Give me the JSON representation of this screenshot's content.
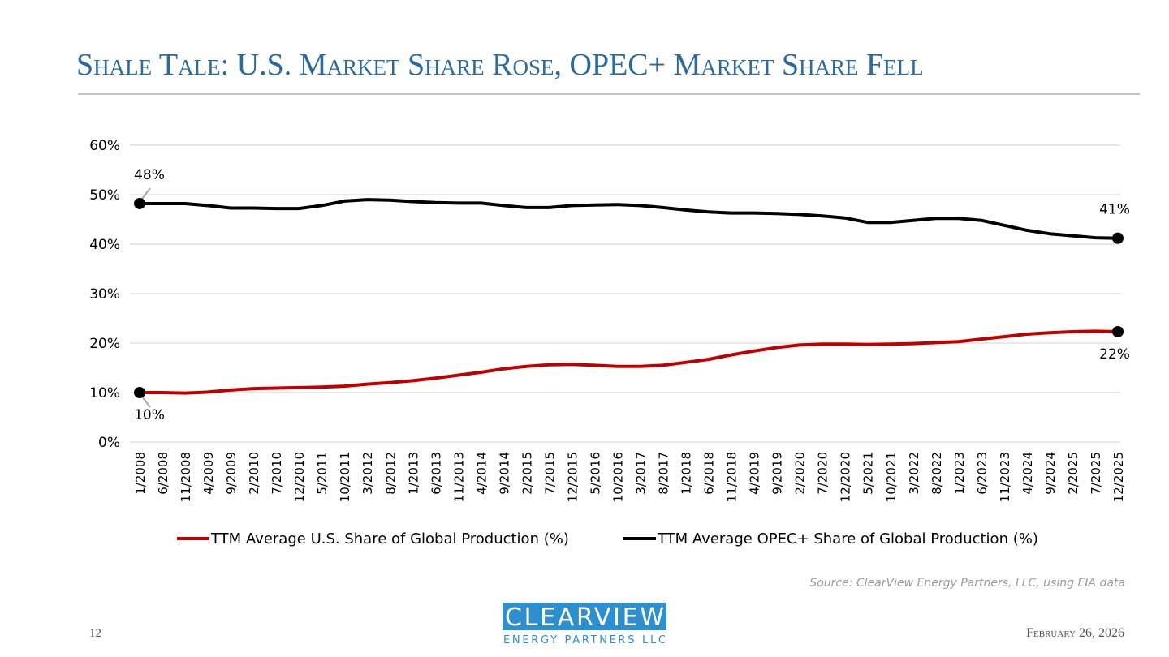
{
  "slide": {
    "title": "Shale Tale: U.S. Market Share Rose, OPEC+ Market Share Fell",
    "source": "Source: ClearView Energy Partners, LLC, using EIA data",
    "page_number": "12",
    "date": "February 26, 2026",
    "logo_top": "CLEARVIEW",
    "logo_bottom": "ENERGY PARTNERS LLC"
  },
  "chart_data": {
    "type": "line",
    "categories": [
      "1/2008",
      "6/2008",
      "11/2008",
      "4/2009",
      "9/2009",
      "2/2010",
      "7/2010",
      "12/2010",
      "5/2011",
      "10/2011",
      "3/2012",
      "8/2012",
      "1/2013",
      "6/2013",
      "11/2013",
      "4/2014",
      "9/2014",
      "2/2015",
      "7/2015",
      "12/2015",
      "5/2016",
      "10/2016",
      "3/2017",
      "8/2017",
      "1/2018",
      "6/2018",
      "11/2018",
      "4/2019",
      "9/2019",
      "2/2020",
      "7/2020",
      "12/2020",
      "5/2021",
      "10/2021",
      "3/2022",
      "8/2022",
      "1/2023",
      "6/2023",
      "11/2023",
      "4/2024",
      "9/2024",
      "2/2025",
      "7/2025",
      "12/2025"
    ],
    "series": [
      {
        "name": "TTM Average U.S. Share of Global Production (%)",
        "color": "#c00000",
        "values": [
          10.0,
          10.0,
          9.9,
          10.1,
          10.5,
          10.8,
          10.9,
          11.0,
          11.1,
          11.3,
          11.7,
          12.0,
          12.4,
          12.9,
          13.5,
          14.1,
          14.8,
          15.3,
          15.6,
          15.7,
          15.5,
          15.3,
          15.3,
          15.5,
          16.1,
          16.7,
          17.6,
          18.4,
          19.1,
          19.6,
          19.8,
          19.8,
          19.7,
          19.8,
          19.9,
          20.1,
          20.3,
          20.8,
          21.3,
          21.8,
          22.1,
          22.3,
          22.4,
          22.3
        ],
        "value_labels": [
          "10%",
          null,
          null,
          null,
          null,
          null,
          null,
          null,
          null,
          null,
          null,
          null,
          null,
          null,
          null,
          null,
          null,
          null,
          null,
          null,
          null,
          null,
          null,
          null,
          null,
          null,
          null,
          null,
          null,
          null,
          null,
          null,
          null,
          null,
          null,
          null,
          null,
          null,
          null,
          null,
          null,
          null,
          null,
          "22%"
        ]
      },
      {
        "name": "TTM Average OPEC+ Share of Global Production (%)",
        "color": "#000000",
        "values": [
          48.2,
          48.2,
          48.2,
          47.8,
          47.3,
          47.3,
          47.2,
          47.2,
          47.8,
          48.7,
          49.0,
          48.9,
          48.6,
          48.4,
          48.3,
          48.3,
          47.8,
          47.4,
          47.4,
          47.8,
          47.9,
          48.0,
          47.8,
          47.4,
          46.9,
          46.5,
          46.3,
          46.3,
          46.2,
          46.0,
          45.7,
          45.3,
          44.4,
          44.4,
          44.8,
          45.2,
          45.2,
          44.8,
          43.8,
          42.8,
          42.1,
          41.7,
          41.3,
          41.2
        ],
        "value_labels": [
          "48%",
          null,
          null,
          null,
          null,
          null,
          null,
          null,
          null,
          null,
          null,
          null,
          null,
          null,
          null,
          null,
          null,
          null,
          null,
          null,
          null,
          null,
          null,
          null,
          null,
          null,
          null,
          null,
          null,
          null,
          null,
          null,
          null,
          null,
          null,
          null,
          null,
          null,
          null,
          null,
          null,
          null,
          null,
          "41%"
        ]
      }
    ],
    "ylim": [
      0,
      60
    ],
    "yticks": [
      {
        "value": 0,
        "label": "0%"
      },
      {
        "value": 10,
        "label": "10%"
      },
      {
        "value": 20,
        "label": "20%"
      },
      {
        "value": 30,
        "label": "30%"
      },
      {
        "value": 40,
        "label": "40%"
      },
      {
        "value": 50,
        "label": "50%"
      },
      {
        "value": 60,
        "label": "60%"
      }
    ],
    "grid": true,
    "legend": "bottom"
  }
}
